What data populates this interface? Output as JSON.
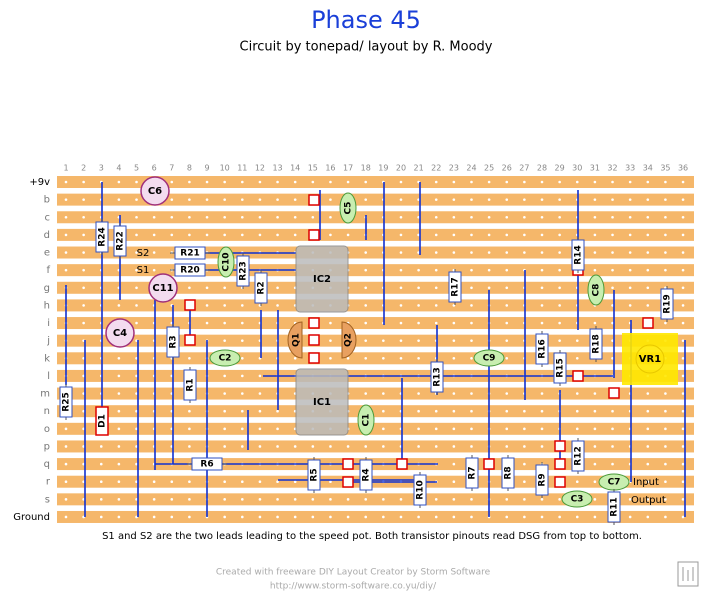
{
  "header": {
    "title": "Phase 45",
    "subtitle": "Circuit by tonepad/ layout by R. Moody"
  },
  "board": {
    "columns": [
      1,
      2,
      3,
      4,
      5,
      6,
      7,
      8,
      9,
      10,
      11,
      12,
      13,
      14,
      15,
      16,
      17,
      18,
      19,
      20,
      21,
      22,
      23,
      24,
      25,
      26,
      27,
      28,
      29,
      30,
      31,
      32,
      33,
      34,
      35,
      36
    ],
    "rows": [
      "+9v",
      "b",
      "c",
      "d",
      "e",
      "f",
      "g",
      "h",
      "i",
      "j",
      "k",
      "l",
      "m",
      "n",
      "o",
      "p",
      "q",
      "r",
      "s",
      "Ground"
    ],
    "components": [
      "C6",
      "C5",
      "R24",
      "R22",
      "S2",
      "R21",
      "C10",
      "S1",
      "R20",
      "R23",
      "IC2",
      "R2",
      "R17",
      "R14",
      "C8",
      "C11",
      "R19",
      "C4",
      "R3",
      "Q1",
      "Q2",
      "C2",
      "C9",
      "R16",
      "R15",
      "R18",
      "VR1",
      "R1",
      "R13",
      "R25",
      "IC1",
      "C1",
      "D1",
      "R6",
      "R5",
      "R4",
      "R10",
      "R7",
      "R8",
      "R9",
      "R12",
      "C7",
      "Input",
      "C3",
      "R11",
      "Output"
    ]
  },
  "note": "S1 and S2 are the two leads leading to the speed pot. Both transistor pinouts read DSG from top to bottom.",
  "footer": {
    "credit": "Created with freeware DIY Layout Creator by Storm Software",
    "url": "http://www.storm-software.co.yu/diy/"
  }
}
